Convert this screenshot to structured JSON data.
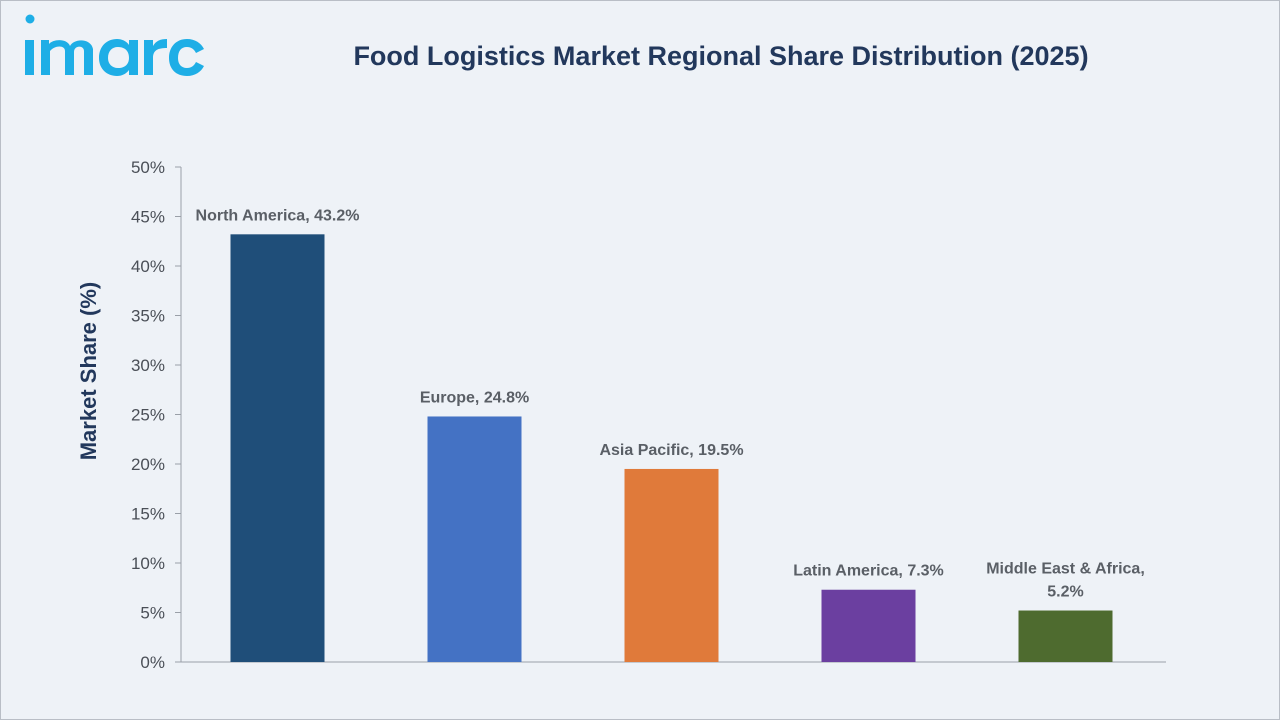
{
  "logo": {
    "text": "imarc",
    "color": "#1eaee6"
  },
  "chart_data": {
    "type": "bar",
    "title": "Food Logistics Market Regional Share Distribution (2025)",
    "xlabel": "",
    "ylabel": "Market Share (%)",
    "ylim": [
      0,
      50
    ],
    "yticks": [
      "0%",
      "5%",
      "10%",
      "15%",
      "20%",
      "25%",
      "30%",
      "35%",
      "40%",
      "45%",
      "50%"
    ],
    "categories": [
      "North America",
      "Europe",
      "Asia Pacific",
      "Latin America",
      "Middle East & Africa"
    ],
    "values": [
      43.2,
      24.8,
      19.5,
      7.3,
      5.2
    ],
    "data_labels": [
      [
        "North America, 43.2%"
      ],
      [
        "Europe, 24.8%"
      ],
      [
        "Asia Pacific, 19.5%"
      ],
      [
        "Latin America, 7.3%"
      ],
      [
        "Middle East & Africa,",
        "5.2%"
      ]
    ],
    "colors": [
      "#1f4e79",
      "#4472c4",
      "#e07a3a",
      "#6b3fa0",
      "#4e6b2f"
    ],
    "grid": false,
    "legend": "none"
  }
}
